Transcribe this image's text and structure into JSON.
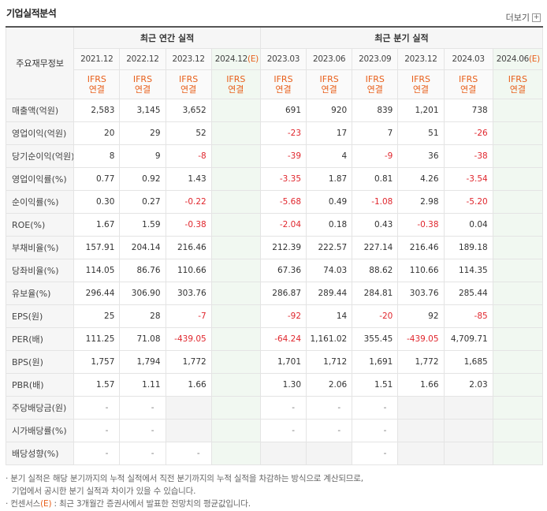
{
  "section_title": "기업실적분석",
  "more_label": "더보기",
  "more_icon": "plus-box-icon",
  "header": {
    "row_label": "주요재무정보",
    "annual_group": "최근 연간 실적",
    "quarter_group": "최근 분기 실적",
    "periods": [
      "2021.12",
      "2022.12",
      "2023.12",
      "2024.12",
      "2023.03",
      "2023.06",
      "2023.09",
      "2023.12",
      "2024.03",
      "2024.06"
    ],
    "estimate_suffix": "(E)",
    "ifrs_line1": "IFRS",
    "ifrs_line2": "연결"
  },
  "rows": [
    {
      "label": "매출액(억원)",
      "values": [
        "2,583",
        "3,145",
        "3,652",
        "",
        "691",
        "920",
        "839",
        "1,201",
        "738",
        ""
      ]
    },
    {
      "label": "영업이익(억원)",
      "values": [
        "20",
        "29",
        "52",
        "",
        "-23",
        "17",
        "7",
        "51",
        "-26",
        ""
      ]
    },
    {
      "label": "당기순이익(억원)",
      "values": [
        "8",
        "9",
        "-8",
        "",
        "-39",
        "4",
        "-9",
        "36",
        "-38",
        ""
      ]
    },
    {
      "label": "영업이익률(%)",
      "values": [
        "0.77",
        "0.92",
        "1.43",
        "",
        "-3.35",
        "1.87",
        "0.81",
        "4.26",
        "-3.54",
        ""
      ]
    },
    {
      "label": "순이익률(%)",
      "values": [
        "0.30",
        "0.27",
        "-0.22",
        "",
        "-5.68",
        "0.49",
        "-1.08",
        "2.98",
        "-5.20",
        ""
      ]
    },
    {
      "label": "ROE(%)",
      "values": [
        "1.67",
        "1.59",
        "-0.38",
        "",
        "-2.04",
        "0.18",
        "0.43",
        "-0.38",
        "0.04",
        ""
      ]
    },
    {
      "label": "부채비율(%)",
      "values": [
        "157.91",
        "204.14",
        "216.46",
        "",
        "212.39",
        "222.57",
        "227.14",
        "216.46",
        "189.18",
        ""
      ]
    },
    {
      "label": "당좌비율(%)",
      "values": [
        "114.05",
        "86.76",
        "110.66",
        "",
        "67.36",
        "74.03",
        "88.62",
        "110.66",
        "114.35",
        ""
      ]
    },
    {
      "label": "유보율(%)",
      "values": [
        "296.44",
        "306.90",
        "303.76",
        "",
        "286.87",
        "289.44",
        "284.81",
        "303.76",
        "285.44",
        ""
      ]
    },
    {
      "label": "EPS(원)",
      "values": [
        "25",
        "28",
        "-7",
        "",
        "-92",
        "14",
        "-20",
        "92",
        "-85",
        ""
      ]
    },
    {
      "label": "PER(배)",
      "values": [
        "111.25",
        "71.08",
        "-439.05",
        "",
        "-64.24",
        "1,161.02",
        "355.45",
        "-439.05",
        "4,709.71",
        ""
      ]
    },
    {
      "label": "BPS(원)",
      "values": [
        "1,757",
        "1,794",
        "1,772",
        "",
        "1,701",
        "1,712",
        "1,691",
        "1,772",
        "1,685",
        ""
      ]
    },
    {
      "label": "PBR(배)",
      "values": [
        "1.57",
        "1.11",
        "1.66",
        "",
        "1.30",
        "2.06",
        "1.51",
        "1.66",
        "2.03",
        ""
      ]
    },
    {
      "label": "주당배당금(원)",
      "values": [
        "-",
        "-",
        "",
        "",
        "-",
        "-",
        "-",
        "",
        "",
        ""
      ]
    },
    {
      "label": "시가배당률(%)",
      "values": [
        "-",
        "-",
        "",
        "",
        "-",
        "-",
        "-",
        "",
        "",
        ""
      ]
    },
    {
      "label": "배당성향(%)",
      "values": [
        "-",
        "-",
        "-",
        "",
        "",
        "",
        "-",
        "",
        "",
        ""
      ]
    }
  ],
  "notes": {
    "line1": "· 분기 실적은 해당 분기까지의 누적 실적에서 직전 분기까지의 누적 실적을 차감하는 방식으로 계산되므로,",
    "line2": "  기업에서 공시한 분기 실적과 차이가 있을 수 있습니다.",
    "line3_a": "· 컨센서스",
    "line3_e": "(E)",
    "line3_b": " : 최근 3개월간 증권사에서 발표한 전망치의 평균값입니다."
  },
  "colors": {
    "negative": "#e0262d",
    "ifrs": "#e8601c",
    "estimate_bg": "#f1f8f1"
  }
}
